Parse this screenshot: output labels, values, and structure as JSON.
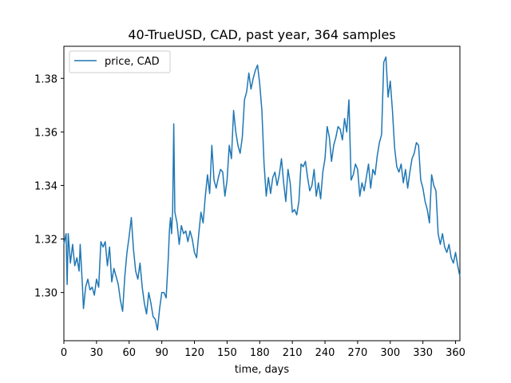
{
  "chart_data": {
    "type": "line",
    "title": "40-TrueUSD, CAD, past year, 364 samples",
    "xlabel": "time, days",
    "ylabel": "",
    "xlim": [
      0,
      364
    ],
    "ylim": [
      1.282,
      1.392
    ],
    "x_ticks": [
      0,
      30,
      60,
      90,
      120,
      150,
      180,
      210,
      240,
      270,
      300,
      330,
      360
    ],
    "y_ticks": [
      1.3,
      1.32,
      1.34,
      1.36,
      1.38
    ],
    "y_tick_labels": [
      "1.30",
      "1.32",
      "1.34",
      "1.36",
      "1.38"
    ],
    "grid": false,
    "legend_position": "top-left",
    "series": [
      {
        "name": "price, CAD",
        "color": "#1f77b4",
        "points": [
          [
            0,
            1.318
          ],
          [
            2,
            1.322
          ],
          [
            3,
            1.303
          ],
          [
            4,
            1.322
          ],
          [
            6,
            1.311
          ],
          [
            8,
            1.318
          ],
          [
            10,
            1.31
          ],
          [
            12,
            1.313
          ],
          [
            14,
            1.308
          ],
          [
            15,
            1.318
          ],
          [
            17,
            1.303
          ],
          [
            18,
            1.294
          ],
          [
            20,
            1.302
          ],
          [
            22,
            1.305
          ],
          [
            24,
            1.301
          ],
          [
            26,
            1.302
          ],
          [
            28,
            1.299
          ],
          [
            30,
            1.305
          ],
          [
            32,
            1.302
          ],
          [
            34,
            1.319
          ],
          [
            36,
            1.317
          ],
          [
            38,
            1.319
          ],
          [
            40,
            1.31
          ],
          [
            42,
            1.317
          ],
          [
            44,
            1.304
          ],
          [
            46,
            1.309
          ],
          [
            48,
            1.306
          ],
          [
            50,
            1.303
          ],
          [
            52,
            1.297
          ],
          [
            54,
            1.293
          ],
          [
            56,
            1.306
          ],
          [
            58,
            1.315
          ],
          [
            60,
            1.321
          ],
          [
            62,
            1.328
          ],
          [
            64,
            1.316
          ],
          [
            66,
            1.308
          ],
          [
            68,
            1.305
          ],
          [
            70,
            1.311
          ],
          [
            72,
            1.302
          ],
          [
            74,
            1.296
          ],
          [
            76,
            1.292
          ],
          [
            78,
            1.3
          ],
          [
            80,
            1.296
          ],
          [
            82,
            1.291
          ],
          [
            84,
            1.29
          ],
          [
            86,
            1.286
          ],
          [
            88,
            1.294
          ],
          [
            90,
            1.3
          ],
          [
            92,
            1.3
          ],
          [
            94,
            1.298
          ],
          [
            96,
            1.313
          ],
          [
            97,
            1.323
          ],
          [
            98,
            1.328
          ],
          [
            99,
            1.322
          ],
          [
            100,
            1.331
          ],
          [
            101,
            1.363
          ],
          [
            102,
            1.33
          ],
          [
            104,
            1.326
          ],
          [
            106,
            1.318
          ],
          [
            108,
            1.325
          ],
          [
            110,
            1.322
          ],
          [
            112,
            1.323
          ],
          [
            114,
            1.319
          ],
          [
            116,
            1.323
          ],
          [
            118,
            1.32
          ],
          [
            120,
            1.315
          ],
          [
            122,
            1.313
          ],
          [
            124,
            1.322
          ],
          [
            126,
            1.33
          ],
          [
            128,
            1.326
          ],
          [
            130,
            1.336
          ],
          [
            132,
            1.344
          ],
          [
            134,
            1.337
          ],
          [
            136,
            1.355
          ],
          [
            138,
            1.342
          ],
          [
            140,
            1.339
          ],
          [
            142,
            1.343
          ],
          [
            144,
            1.346
          ],
          [
            146,
            1.345
          ],
          [
            148,
            1.336
          ],
          [
            150,
            1.342
          ],
          [
            152,
            1.355
          ],
          [
            154,
            1.35
          ],
          [
            156,
            1.368
          ],
          [
            158,
            1.36
          ],
          [
            160,
            1.355
          ],
          [
            162,
            1.352
          ],
          [
            164,
            1.358
          ],
          [
            166,
            1.372
          ],
          [
            168,
            1.375
          ],
          [
            170,
            1.382
          ],
          [
            172,
            1.376
          ],
          [
            174,
            1.38
          ],
          [
            176,
            1.383
          ],
          [
            178,
            1.385
          ],
          [
            180,
            1.378
          ],
          [
            182,
            1.368
          ],
          [
            184,
            1.348
          ],
          [
            186,
            1.336
          ],
          [
            188,
            1.343
          ],
          [
            190,
            1.337
          ],
          [
            192,
            1.343
          ],
          [
            194,
            1.345
          ],
          [
            196,
            1.34
          ],
          [
            198,
            1.344
          ],
          [
            200,
            1.35
          ],
          [
            202,
            1.341
          ],
          [
            204,
            1.334
          ],
          [
            206,
            1.346
          ],
          [
            208,
            1.341
          ],
          [
            210,
            1.33
          ],
          [
            212,
            1.331
          ],
          [
            214,
            1.329
          ],
          [
            216,
            1.334
          ],
          [
            218,
            1.348
          ],
          [
            220,
            1.347
          ],
          [
            222,
            1.349
          ],
          [
            224,
            1.343
          ],
          [
            226,
            1.338
          ],
          [
            228,
            1.34
          ],
          [
            230,
            1.346
          ],
          [
            232,
            1.336
          ],
          [
            234,
            1.341
          ],
          [
            236,
            1.335
          ],
          [
            238,
            1.345
          ],
          [
            240,
            1.35
          ],
          [
            242,
            1.362
          ],
          [
            244,
            1.358
          ],
          [
            246,
            1.349
          ],
          [
            248,
            1.355
          ],
          [
            250,
            1.358
          ],
          [
            252,
            1.362
          ],
          [
            254,
            1.361
          ],
          [
            256,
            1.357
          ],
          [
            258,
            1.365
          ],
          [
            260,
            1.36
          ],
          [
            262,
            1.372
          ],
          [
            264,
            1.342
          ],
          [
            266,
            1.344
          ],
          [
            268,
            1.348
          ],
          [
            270,
            1.346
          ],
          [
            272,
            1.336
          ],
          [
            274,
            1.341
          ],
          [
            276,
            1.338
          ],
          [
            278,
            1.343
          ],
          [
            280,
            1.348
          ],
          [
            282,
            1.339
          ],
          [
            284,
            1.346
          ],
          [
            286,
            1.344
          ],
          [
            288,
            1.351
          ],
          [
            290,
            1.356
          ],
          [
            292,
            1.359
          ],
          [
            294,
            1.386
          ],
          [
            296,
            1.388
          ],
          [
            298,
            1.373
          ],
          [
            300,
            1.379
          ],
          [
            302,
            1.368
          ],
          [
            304,
            1.354
          ],
          [
            306,
            1.347
          ],
          [
            308,
            1.345
          ],
          [
            310,
            1.348
          ],
          [
            312,
            1.341
          ],
          [
            314,
            1.346
          ],
          [
            316,
            1.339
          ],
          [
            318,
            1.345
          ],
          [
            320,
            1.35
          ],
          [
            322,
            1.352
          ],
          [
            324,
            1.356
          ],
          [
            326,
            1.355
          ],
          [
            328,
            1.342
          ],
          [
            330,
            1.339
          ],
          [
            332,
            1.334
          ],
          [
            334,
            1.331
          ],
          [
            336,
            1.326
          ],
          [
            338,
            1.344
          ],
          [
            340,
            1.34
          ],
          [
            342,
            1.338
          ],
          [
            344,
            1.322
          ],
          [
            346,
            1.318
          ],
          [
            348,
            1.322
          ],
          [
            350,
            1.317
          ],
          [
            352,
            1.315
          ],
          [
            354,
            1.318
          ],
          [
            356,
            1.313
          ],
          [
            358,
            1.311
          ],
          [
            360,
            1.315
          ],
          [
            362,
            1.31
          ],
          [
            364,
            1.306
          ]
        ]
      }
    ]
  }
}
